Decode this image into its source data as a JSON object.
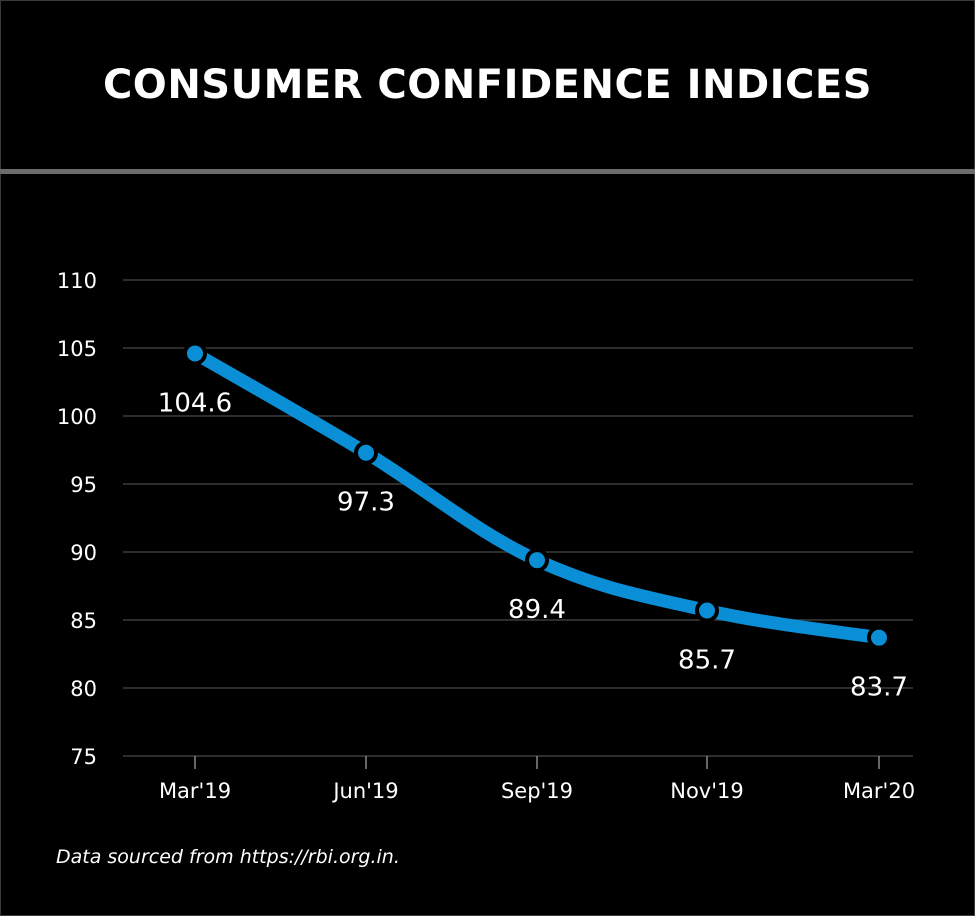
{
  "title": "CONSUMER CONFIDENCE INDICES",
  "source_note": "Data sourced from https://rbi.org.in.",
  "colors": {
    "line": "#0a8fd6",
    "background": "#000000",
    "grid": "#3c3c3c",
    "text": "#ffffff",
    "divider": "#6b6b6b"
  },
  "chart_data": {
    "type": "line",
    "categories": [
      "Mar'19",
      "Jun'19",
      "Sep'19",
      "Nov'19",
      "Mar'20"
    ],
    "series": [
      {
        "values": [
          104.6,
          97.3,
          89.4,
          85.7,
          83.7
        ]
      }
    ],
    "data_labels": [
      "104.6",
      "97.3",
      "89.4",
      "85.7",
      "83.7"
    ],
    "ylim": [
      75,
      110
    ],
    "yticks": [
      75,
      80,
      85,
      90,
      95,
      100,
      105,
      110
    ],
    "grid": true,
    "legend": "none"
  }
}
